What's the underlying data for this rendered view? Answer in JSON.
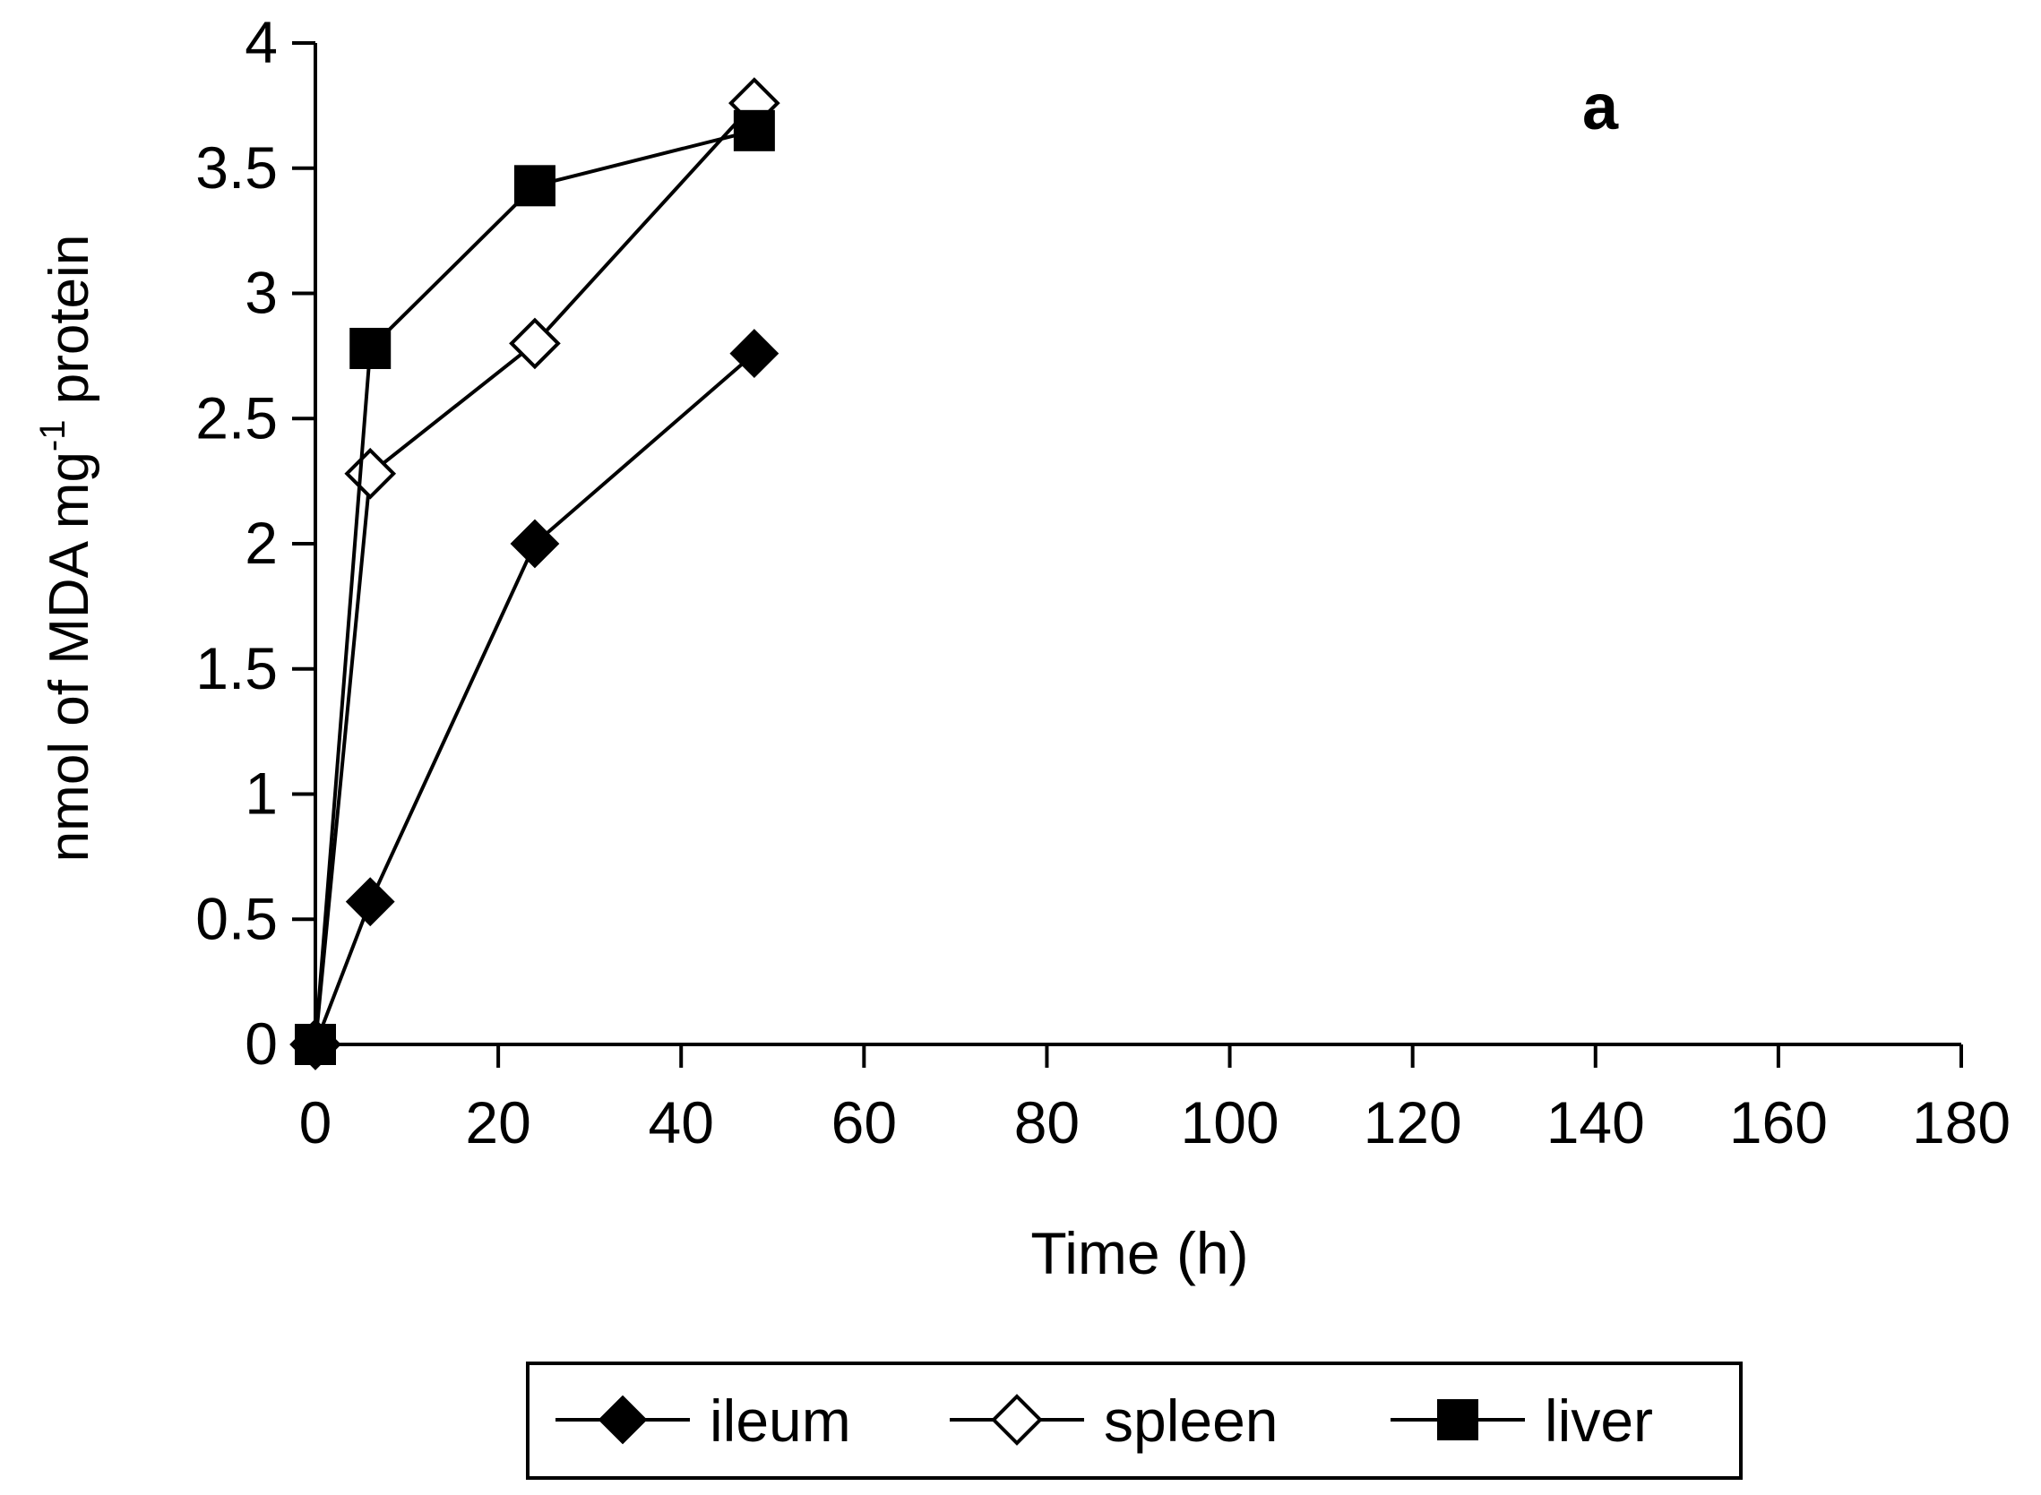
{
  "chart_data": {
    "type": "line",
    "panel_label": "a",
    "xlabel": "Time (h)",
    "ylabel": {
      "main": "nmol of MDA mg",
      "superscript": "-1",
      "suffix": " protein"
    },
    "xlim": [
      0,
      180
    ],
    "ylim": [
      0,
      4
    ],
    "x_ticks": [
      0,
      20,
      40,
      60,
      80,
      100,
      120,
      140,
      160,
      180
    ],
    "y_ticks": [
      0,
      0.5,
      1,
      1.5,
      2,
      2.5,
      3,
      3.5,
      4
    ],
    "x_tick_labels": [
      "0",
      "20",
      "40",
      "60",
      "80",
      "100",
      "120",
      "140",
      "160",
      "180"
    ],
    "y_tick_labels": [
      "0",
      "0.5",
      "1",
      "1.5",
      "2",
      "2.5",
      "3",
      "3.5",
      "4"
    ],
    "grid": false,
    "legend_position": "bottom",
    "series": [
      {
        "name": "ileum",
        "marker": "diamond-filled",
        "x": [
          0,
          6,
          24,
          48
        ],
        "y": [
          0,
          0.57,
          2.0,
          2.76
        ]
      },
      {
        "name": "spleen",
        "marker": "diamond-open",
        "x": [
          0,
          6,
          24,
          48
        ],
        "y": [
          0,
          2.28,
          2.8,
          3.76
        ]
      },
      {
        "name": "liver",
        "marker": "square-filled",
        "x": [
          0,
          6,
          24,
          48
        ],
        "y": [
          0,
          2.78,
          3.43,
          3.65
        ]
      }
    ]
  }
}
